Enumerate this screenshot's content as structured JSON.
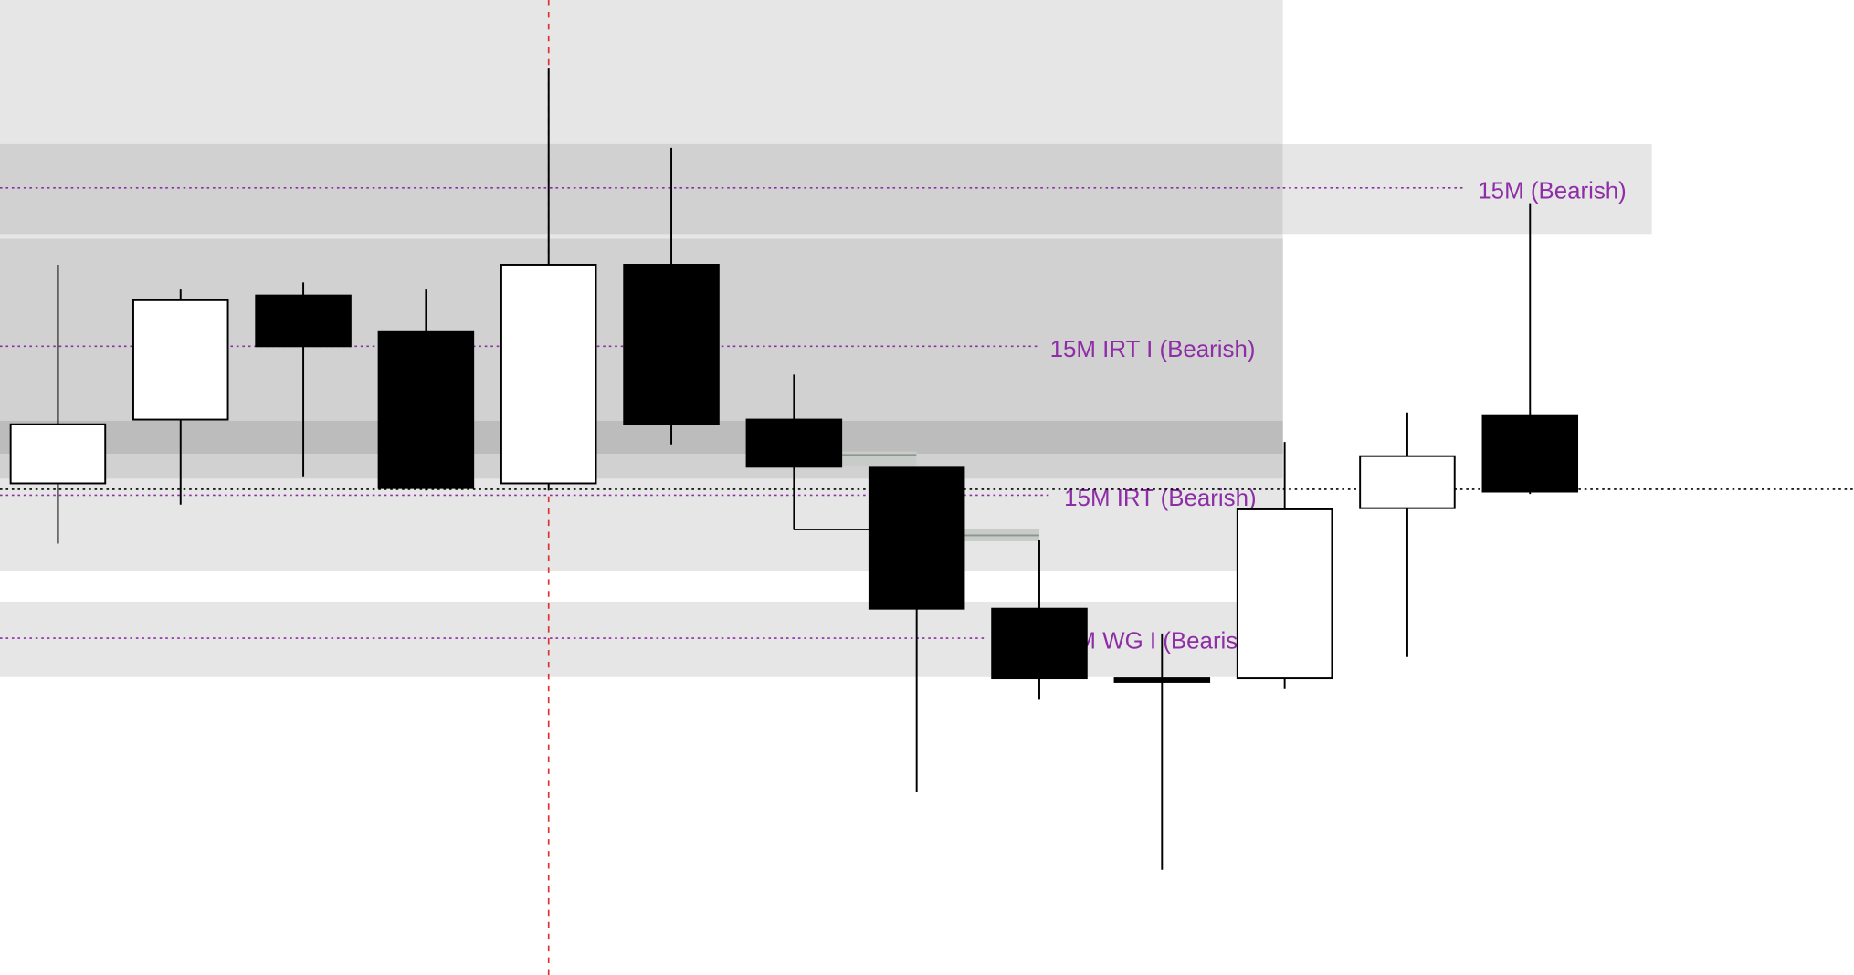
{
  "chart_data": {
    "type": "candlestick",
    "title": "",
    "xlabel": "",
    "ylabel": "",
    "grid": false,
    "colors": {
      "bullish_body": "#ffffff",
      "bearish_body": "#000000",
      "label": "#8e2ea6",
      "crosshair": "#e03030"
    },
    "candles": [
      {
        "open": 416,
        "high": 601,
        "low": 365,
        "close": 466
      },
      {
        "open": 470,
        "high": 580,
        "low": 398,
        "close": 571
      },
      {
        "open": 575,
        "high": 586,
        "low": 422,
        "close": 532
      },
      {
        "open": 544,
        "high": 580,
        "low": 410,
        "close": 412
      },
      {
        "open": 416,
        "high": 767,
        "low": 410,
        "close": 601
      },
      {
        "open": 601,
        "high": 700,
        "low": 449,
        "close": 466
      },
      {
        "open": 470,
        "high": 508,
        "low": 377,
        "close": 430
      },
      {
        "open": 430,
        "high": 430,
        "low": 155,
        "close": 310
      },
      {
        "open": 310,
        "high": 368,
        "low": 233,
        "close": 251
      },
      {
        "open": 251,
        "high": 289,
        "low": 89,
        "close": 248
      },
      {
        "open": 251,
        "high": 451,
        "low": 242,
        "close": 394
      },
      {
        "open": 395,
        "high": 476,
        "low": 269,
        "close": 439
      },
      {
        "open": 473,
        "high": 653,
        "low": 407,
        "close": 409
      }
    ],
    "levels": [
      {
        "label": "15M (Bearish)",
        "price": 666
      },
      {
        "label": "15M IRT I (Bearish)",
        "price": 532
      },
      {
        "label": "15M IRT (Bearish)",
        "price": 406
      },
      {
        "label": "15M WG I (Bearish)",
        "price": 285
      }
    ],
    "current_price": 411,
    "crosshair_candle_index": 4
  }
}
